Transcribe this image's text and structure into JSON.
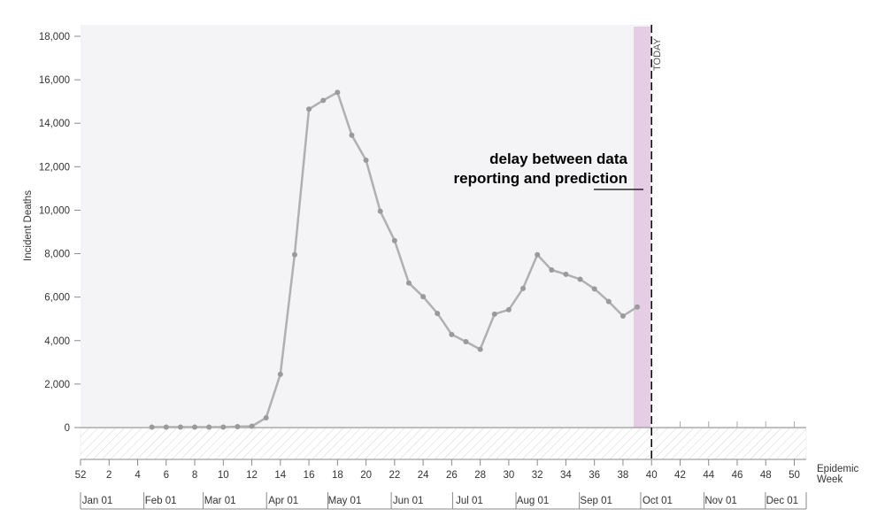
{
  "chart_data": {
    "type": "line",
    "ylabel": "Incident Deaths",
    "xlabel": "Epidemic Week",
    "ylim": [
      0,
      18000
    ],
    "yticks": [
      0,
      2000,
      4000,
      6000,
      8000,
      10000,
      12000,
      14000,
      16000,
      18000
    ],
    "ytick_labels": [
      "0",
      "2,000",
      "4,000",
      "6,000",
      "8,000",
      "10,000",
      "12,000",
      "14,000",
      "16,000",
      "18,000"
    ],
    "week_ticks": [
      "52",
      "2",
      "4",
      "6",
      "8",
      "10",
      "12",
      "14",
      "16",
      "18",
      "20",
      "22",
      "24",
      "26",
      "28",
      "30",
      "32",
      "34",
      "36",
      "38",
      "40",
      "42",
      "44",
      "46",
      "48",
      "50"
    ],
    "month_ticks": [
      "Jan 01",
      "Feb 01",
      "Mar 01",
      "Apr 01",
      "May 01",
      "Jun 01",
      "Jul 01",
      "Aug 01",
      "Sep 01",
      "Oct 01",
      "Nov 01",
      "Dec 01"
    ],
    "series": [
      {
        "x": [
          5,
          6,
          7,
          8,
          9,
          10,
          11,
          12,
          13,
          14,
          15,
          16,
          17,
          18,
          19,
          20,
          21,
          22,
          23,
          24,
          25,
          26,
          27,
          28,
          29,
          30,
          31,
          32,
          33,
          34,
          35,
          36,
          37,
          38,
          39
        ],
        "values": [
          20,
          20,
          20,
          20,
          20,
          20,
          40,
          60,
          450,
          2450,
          7950,
          14650,
          15050,
          15420,
          13450,
          12300,
          9950,
          8600,
          6650,
          6020,
          5250,
          4280,
          3950,
          3600,
          5220,
          5420,
          6400,
          7950,
          7250,
          7050,
          6820,
          6380,
          5800,
          5130,
          5550
        ]
      }
    ],
    "delay_band_weeks": [
      39,
      40
    ],
    "today_week": 40,
    "annotation_lines": [
      "delay between data",
      "reporting and prediction"
    ],
    "today_label": "TODAY",
    "colors": {
      "line": "#b0b0b0",
      "point": "#9a9a9a",
      "band": "#e6cde6",
      "plot_bg": "#f4f4f6",
      "hatch": "#d4d4d4"
    }
  }
}
